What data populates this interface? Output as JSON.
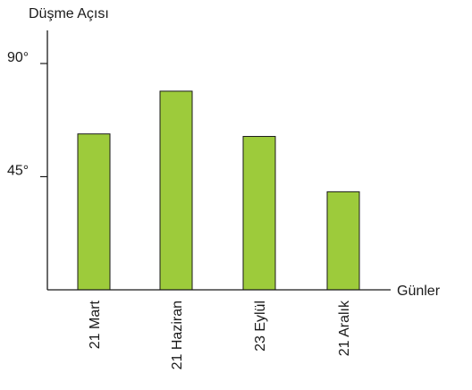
{
  "chart_data": {
    "type": "bar",
    "ylabel": "Düşme Açısı",
    "xlabel": "Günler",
    "categories": [
      "21 Mart",
      "21 Haziran",
      "23 Eylül",
      "21 Aralık"
    ],
    "values": [
      62,
      79,
      61,
      39
    ],
    "yticks": [
      {
        "value": 45,
        "label": "45°"
      },
      {
        "value": 90,
        "label": "90°"
      }
    ],
    "ylim": [
      0,
      100
    ],
    "grid": false,
    "colors": {
      "bar_fill": "#9dcb3b",
      "bar_stroke": "#1a1a1a",
      "axis": "#1a1a1a"
    }
  }
}
